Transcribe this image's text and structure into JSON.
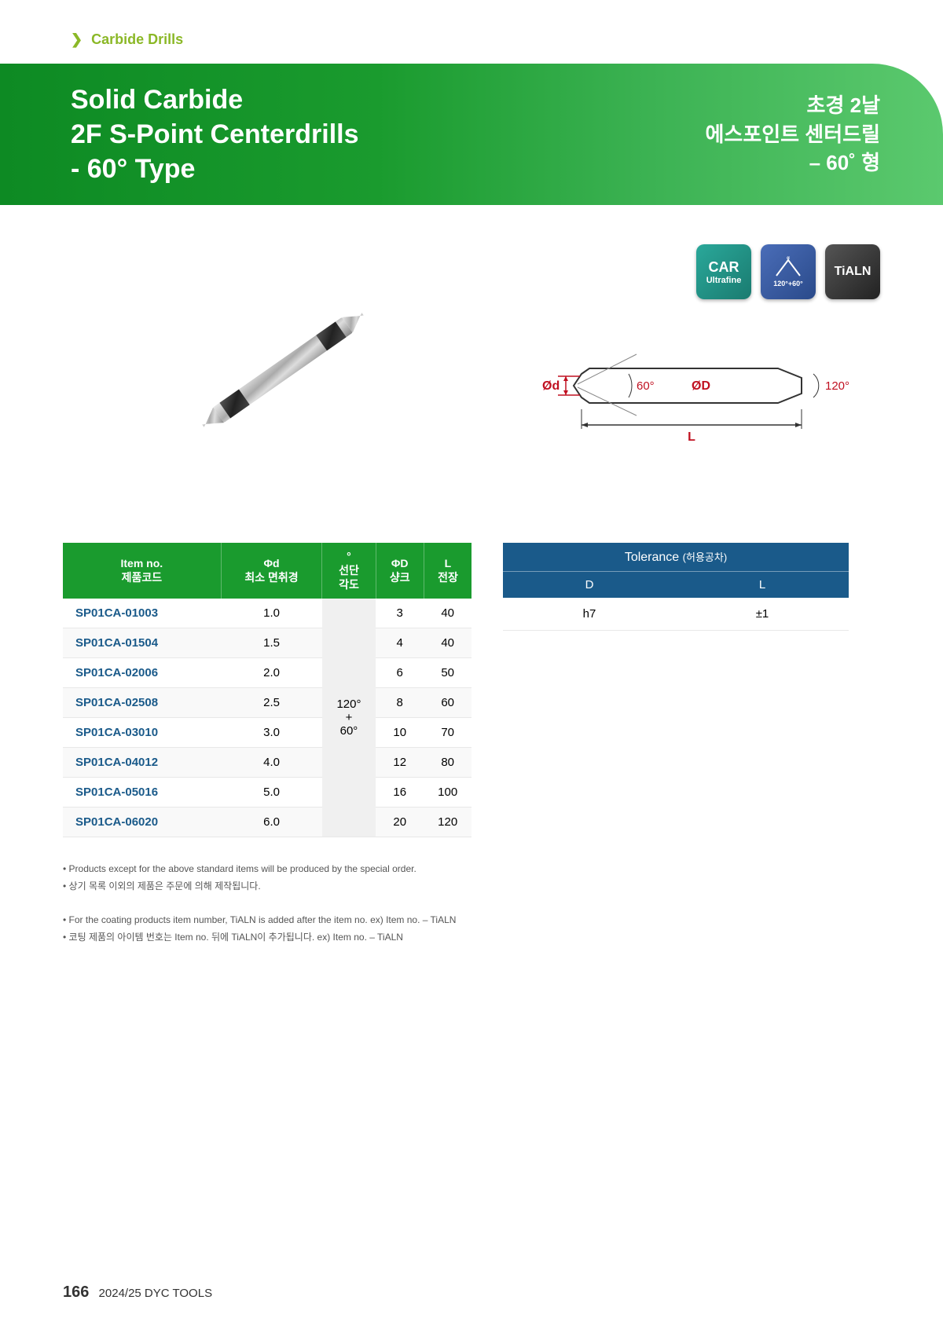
{
  "breadcrumb": "Carbide Drills",
  "banner": {
    "title_line1": "Solid Carbide",
    "title_line2": "2F S-Point Centerdrills",
    "title_line3": "- 60° Type",
    "subtitle_line1": "초경 2날",
    "subtitle_line2": "에스포인트 센터드릴",
    "subtitle_line3": "– 60˚ 형"
  },
  "badges": {
    "car_label": "CAR",
    "car_sub": "Ultrafine",
    "angle_label": "120°+60°",
    "tialn_label": "TiALN"
  },
  "diagram": {
    "od_label": "Ød",
    "od_cap": "ØD",
    "angle60": "60°",
    "angle120": "120°",
    "L": "L"
  },
  "spec_table": {
    "headers": {
      "item": "Item no.\n제품코드",
      "phi_d": "Φd\n최소 면취경",
      "angle": "°\n선단\n각도",
      "phi_D": "ΦD\n샹크",
      "L": "L\n전장"
    },
    "angle_value": "120°\n+\n60°",
    "rows": [
      {
        "item": "SP01CA-01003",
        "d": "1.0",
        "D": "3",
        "L": "40"
      },
      {
        "item": "SP01CA-01504",
        "d": "1.5",
        "D": "4",
        "L": "40"
      },
      {
        "item": "SP01CA-02006",
        "d": "2.0",
        "D": "6",
        "L": "50"
      },
      {
        "item": "SP01CA-02508",
        "d": "2.5",
        "D": "8",
        "L": "60"
      },
      {
        "item": "SP01CA-03010",
        "d": "3.0",
        "D": "10",
        "L": "70"
      },
      {
        "item": "SP01CA-04012",
        "d": "4.0",
        "D": "12",
        "L": "80"
      },
      {
        "item": "SP01CA-05016",
        "d": "5.0",
        "D": "16",
        "L": "100"
      },
      {
        "item": "SP01CA-06020",
        "d": "6.0",
        "D": "20",
        "L": "120"
      }
    ]
  },
  "tol_table": {
    "title": "Tolerance",
    "title_sub": "(허용공차)",
    "col_D": "D",
    "col_L": "L",
    "val_D": "h7",
    "val_L": "±1"
  },
  "notes": {
    "n1": "• Products except for the above standard items will be produced by the special order.",
    "n2": "• 상기 목록 이외의 제품은 주문에 의해 제작됩니다.",
    "n3": "• For the coating products item number, TiALN is added after the item no. ex) Item no. – TiALN",
    "n4": "• 코팅 제품의 아이템 번호는 Item no. 뒤에 TiALN이 추가됩니다.  ex) Item no. – TiALN"
  },
  "footer": {
    "page": "166",
    "text": "2024/25 DYC TOOLS"
  },
  "colors": {
    "brand_green": "#1a9b2e",
    "brand_green_dark": "#0d8a23",
    "brand_green_light": "#5bc96e",
    "accent_lime": "#8bb827",
    "table_blue": "#1a5a8a",
    "diagram_red": "#c01020",
    "badge_teal": "#2aa89a",
    "badge_blue": "#4a6db8",
    "badge_dark": "#333333"
  }
}
